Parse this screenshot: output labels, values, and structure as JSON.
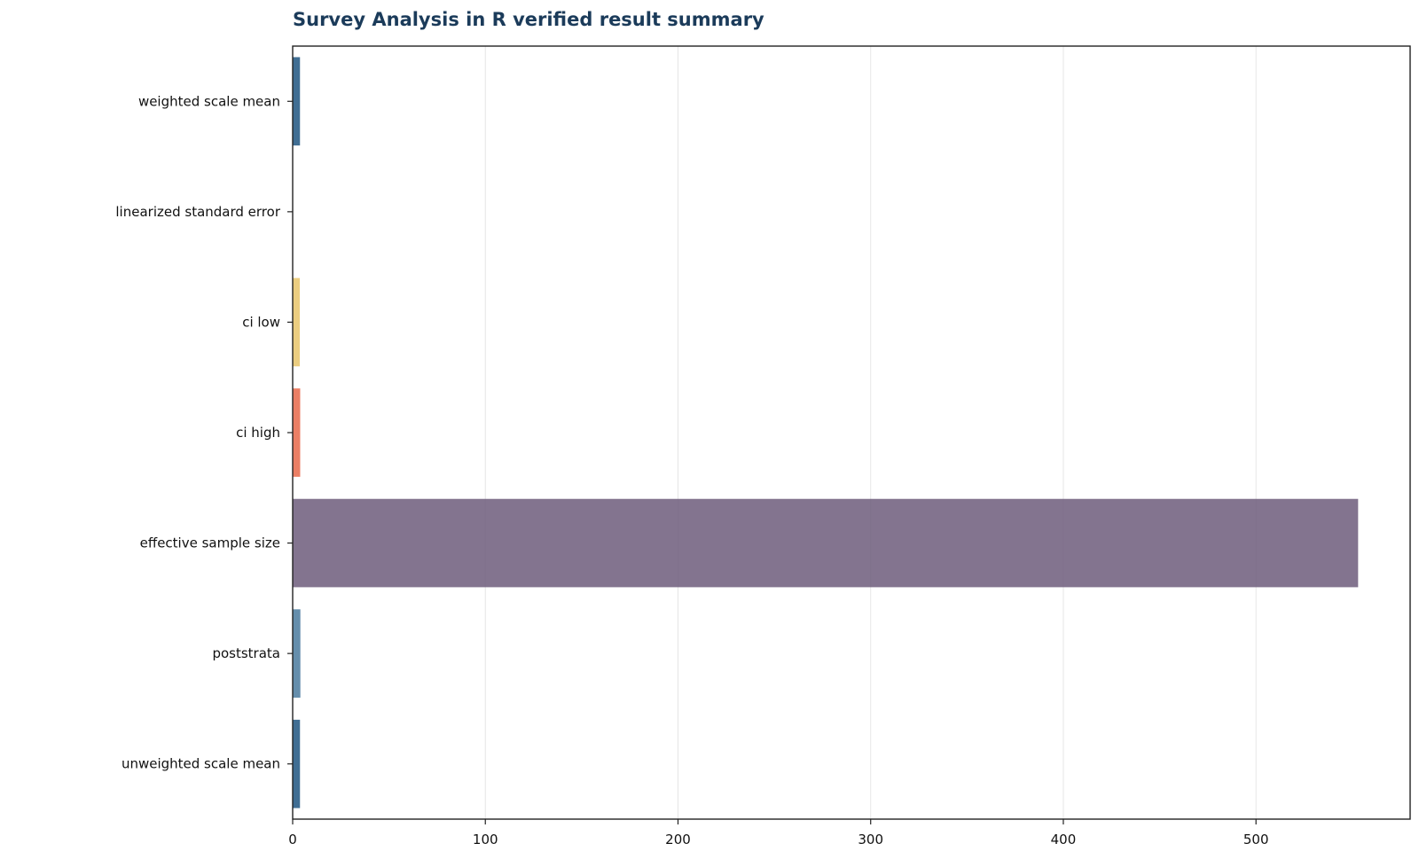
{
  "chart_data": {
    "type": "bar",
    "orientation": "horizontal",
    "title": "Survey Analysis in R verified result summary",
    "xlabel": "",
    "ylabel": "",
    "categories": [
      "weighted scale mean",
      "linearized standard error",
      "ci low",
      "ci high",
      "effective sample size",
      "poststrata",
      "unweighted scale mean"
    ],
    "values": [
      3.8,
      0.05,
      3.7,
      3.9,
      553,
      4,
      3.8
    ],
    "colors": [
      "#1f5580",
      "#1f5580",
      "#e8c46a",
      "#e8694a",
      "#6d5c7b",
      "#4a7a9e",
      "#1f5580"
    ],
    "xlim": [
      0,
      580
    ],
    "xticks": [
      0,
      100,
      200,
      300,
      400,
      500
    ],
    "grid": "vertical",
    "legend": "none"
  }
}
